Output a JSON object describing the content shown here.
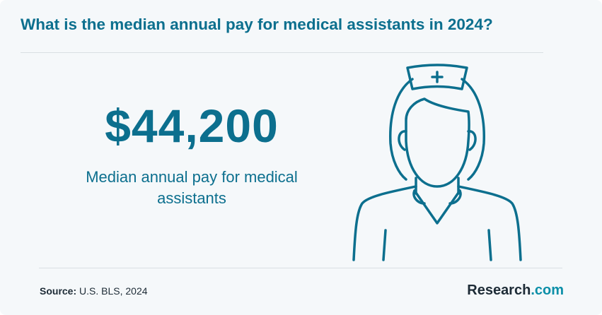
{
  "header": {
    "title": "What is the median annual pay for medical assistants in 2024?"
  },
  "stat": {
    "value": "$44,200",
    "caption": "Median annual pay for medical assistants"
  },
  "illustration": {
    "icon": "nurse-icon",
    "stroke_color": "#0c6f8e"
  },
  "footer": {
    "source_label": "Source:",
    "source_text": " U.S. BLS, 2024",
    "logo_main": "Research",
    "logo_suffix": ".com"
  },
  "colors": {
    "accent": "#0c6f8e",
    "background": "#f5f8fa",
    "text_dark": "#1d2b36"
  }
}
